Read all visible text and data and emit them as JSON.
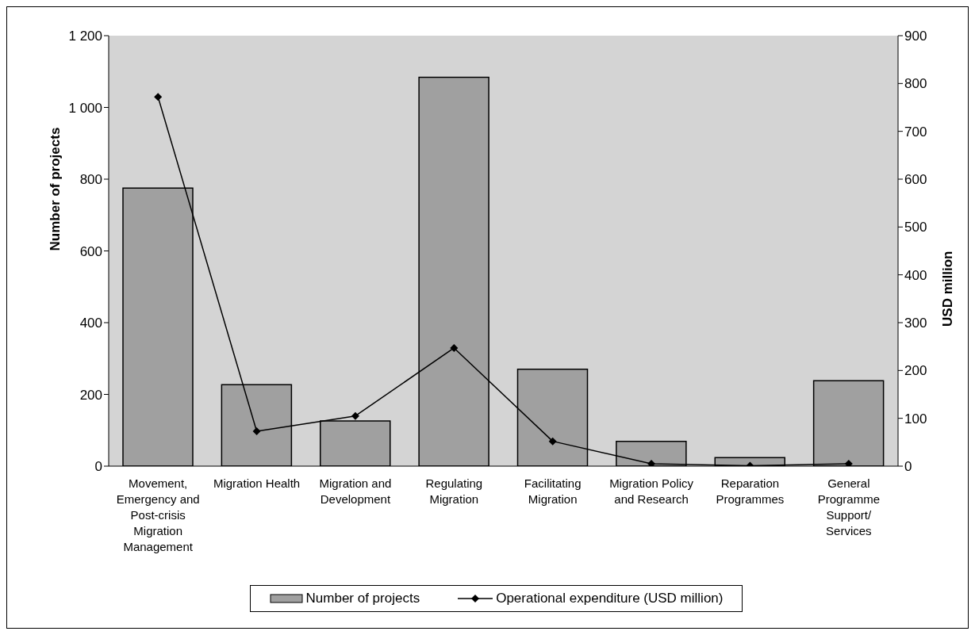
{
  "chart_data": {
    "type": "bar",
    "ylabel": "Number of projects",
    "y2label": "USD million",
    "categories": [
      "Movement, Emergency and Post-crisis Migration Management",
      "Migration Health",
      "Migration and Development",
      "Regulating Migration",
      "Facilitating Migration",
      "Migration Policy and Research",
      "Reparation Programmes",
      "General Programme Support/ Services"
    ],
    "series": [
      {
        "name": "Number of projects",
        "color": "#a0a0a0",
        "values": [
          775,
          227,
          126,
          1084,
          270,
          69,
          24,
          238
        ]
      },
      {
        "name": "Operational expenditure (USD million)",
        "type": "line",
        "axis": "y2",
        "color": "#000000",
        "marker": "diamond",
        "values": [
          772,
          73,
          105,
          247,
          52,
          5,
          1,
          5
        ]
      }
    ],
    "ylim": [
      0,
      1200
    ],
    "yticks": [
      0,
      200,
      400,
      600,
      800,
      {
        "value": 1000,
        "label": "1 000"
      },
      {
        "value": 1200,
        "label": "1 200"
      }
    ],
    "y2lim": [
      0,
      900
    ],
    "y2ticks": [
      0,
      100,
      200,
      300,
      400,
      500,
      600,
      700,
      800,
      900
    ],
    "grid": false,
    "legend": "bottom"
  }
}
